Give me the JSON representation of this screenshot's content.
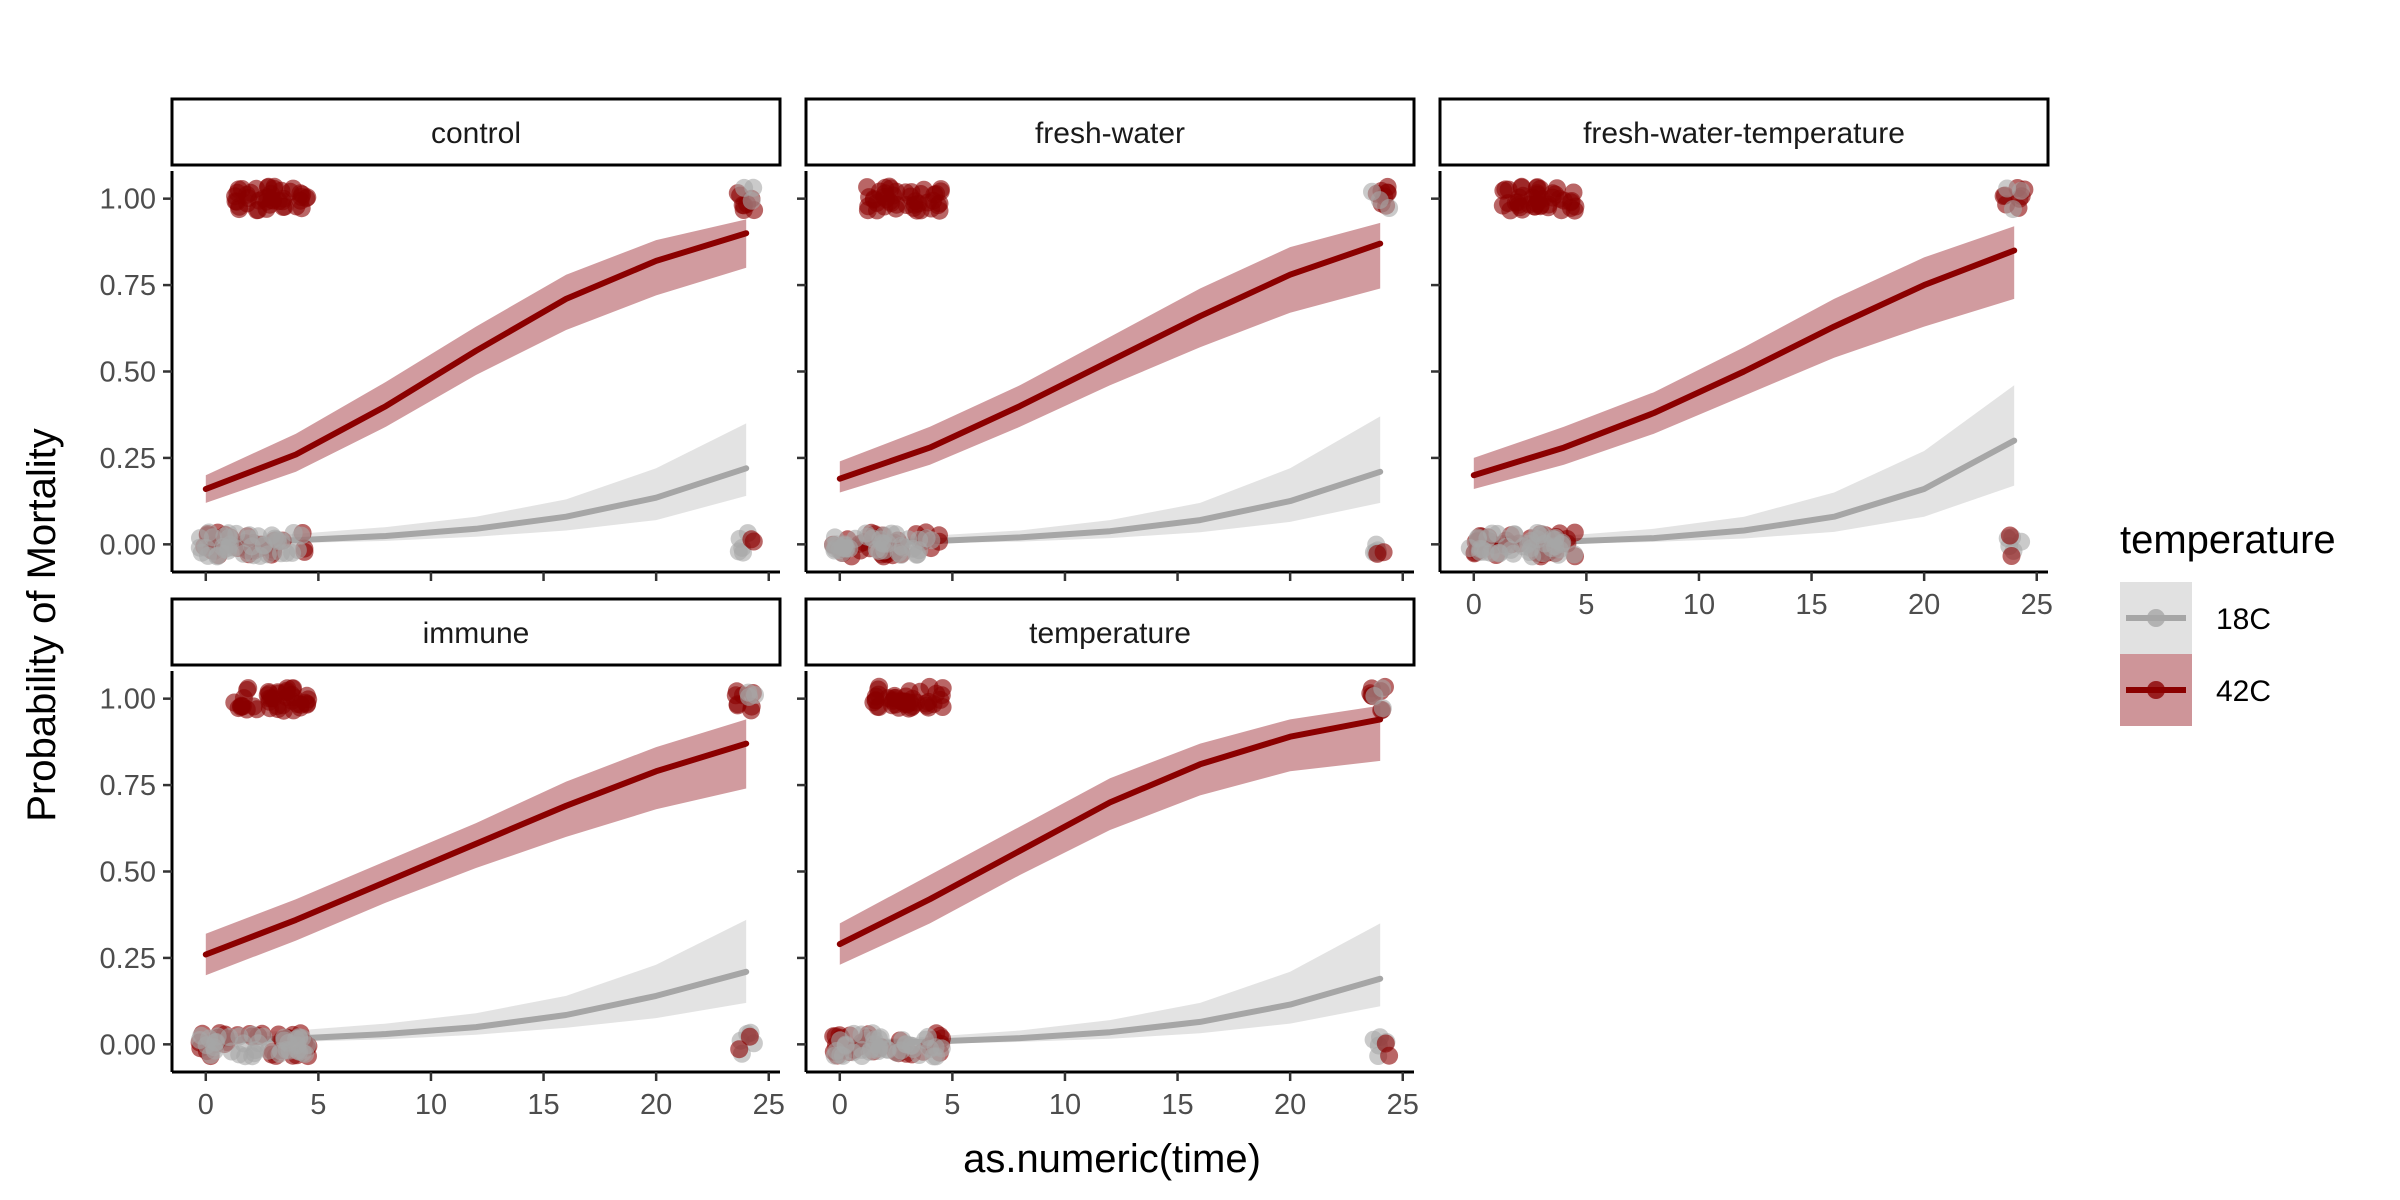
{
  "chart_data": {
    "type": "line",
    "facet_by": "treatment",
    "xlabel": "as.numeric(time)",
    "ylabel": "Probability of Mortality",
    "xlim": [
      -1.5,
      25.5
    ],
    "ylim": [
      -0.08,
      1.08
    ],
    "x_ticks": [
      0,
      5,
      10,
      15,
      20,
      25
    ],
    "y_ticks": [
      0.0,
      0.25,
      0.5,
      0.75,
      1.0
    ],
    "y_tick_labels": [
      "0.00",
      "0.25",
      "0.50",
      "0.75",
      "1.00"
    ],
    "grid": false,
    "legend": {
      "title": "temperature",
      "position": "right",
      "entries": [
        {
          "label": "18C",
          "line_color": "#a6a6a6",
          "band_color": "#d9d9d9"
        },
        {
          "label": "42C",
          "line_color": "#8b0000",
          "band_color": "#c98a8e"
        }
      ]
    },
    "panels": [
      {
        "title": "control",
        "series": [
          {
            "name": "18C",
            "x": [
              0,
              4,
              8,
              12,
              16,
              20,
              24
            ],
            "y": [
              0.005,
              0.012,
              0.024,
              0.045,
              0.08,
              0.135,
              0.22
            ],
            "lower": [
              0.0,
              0.004,
              0.01,
              0.022,
              0.04,
              0.07,
              0.14
            ],
            "upper": [
              0.02,
              0.03,
              0.05,
              0.08,
              0.13,
              0.22,
              0.35
            ]
          },
          {
            "name": "42C",
            "x": [
              0,
              4,
              8,
              12,
              16,
              20,
              24
            ],
            "y": [
              0.16,
              0.26,
              0.4,
              0.56,
              0.71,
              0.82,
              0.9
            ],
            "lower": [
              0.12,
              0.21,
              0.34,
              0.49,
              0.62,
              0.72,
              0.8
            ],
            "upper": [
              0.2,
              0.32,
              0.47,
              0.63,
              0.78,
              0.88,
              0.94
            ]
          }
        ]
      },
      {
        "title": "fresh-water",
        "series": [
          {
            "name": "18C",
            "x": [
              0,
              4,
              8,
              12,
              16,
              20,
              24
            ],
            "y": [
              0.004,
              0.009,
              0.02,
              0.038,
              0.07,
              0.125,
              0.21
            ],
            "lower": [
              0.0,
              0.003,
              0.008,
              0.018,
              0.035,
              0.065,
              0.12
            ],
            "upper": [
              0.015,
              0.025,
              0.04,
              0.07,
              0.12,
              0.22,
              0.37
            ]
          },
          {
            "name": "42C",
            "x": [
              0,
              4,
              8,
              12,
              16,
              20,
              24
            ],
            "y": [
              0.19,
              0.28,
              0.4,
              0.53,
              0.66,
              0.78,
              0.87
            ],
            "lower": [
              0.15,
              0.23,
              0.34,
              0.46,
              0.57,
              0.67,
              0.74
            ],
            "upper": [
              0.24,
              0.34,
              0.46,
              0.6,
              0.74,
              0.86,
              0.93
            ]
          }
        ]
      },
      {
        "title": "fresh-water-temperature",
        "series": [
          {
            "name": "18C",
            "x": [
              0,
              4,
              8,
              12,
              16,
              20,
              24
            ],
            "y": [
              0.003,
              0.008,
              0.018,
              0.04,
              0.08,
              0.16,
              0.3
            ],
            "lower": [
              0.0,
              0.002,
              0.007,
              0.017,
              0.036,
              0.08,
              0.17
            ],
            "upper": [
              0.01,
              0.025,
              0.045,
              0.08,
              0.15,
              0.27,
              0.46
            ]
          },
          {
            "name": "42C",
            "x": [
              0,
              4,
              8,
              12,
              16,
              20,
              24
            ],
            "y": [
              0.2,
              0.28,
              0.38,
              0.5,
              0.63,
              0.75,
              0.85
            ],
            "lower": [
              0.16,
              0.23,
              0.32,
              0.43,
              0.54,
              0.63,
              0.71
            ],
            "upper": [
              0.25,
              0.34,
              0.44,
              0.57,
              0.71,
              0.83,
              0.92
            ]
          }
        ]
      },
      {
        "title": "immune",
        "series": [
          {
            "name": "18C",
            "x": [
              0,
              4,
              8,
              12,
              16,
              20,
              24
            ],
            "y": [
              0.01,
              0.017,
              0.03,
              0.05,
              0.085,
              0.14,
              0.21
            ],
            "lower": [
              0.002,
              0.007,
              0.015,
              0.028,
              0.048,
              0.076,
              0.12
            ],
            "upper": [
              0.03,
              0.04,
              0.06,
              0.09,
              0.14,
              0.23,
              0.36
            ]
          },
          {
            "name": "42C",
            "x": [
              0,
              4,
              8,
              12,
              16,
              20,
              24
            ],
            "y": [
              0.26,
              0.36,
              0.47,
              0.58,
              0.69,
              0.79,
              0.87
            ],
            "lower": [
              0.2,
              0.3,
              0.41,
              0.51,
              0.6,
              0.68,
              0.74
            ],
            "upper": [
              0.32,
              0.42,
              0.53,
              0.64,
              0.76,
              0.86,
              0.94
            ]
          }
        ]
      },
      {
        "title": "temperature",
        "series": [
          {
            "name": "18C",
            "x": [
              0,
              4,
              8,
              12,
              16,
              20,
              24
            ],
            "y": [
              0.003,
              0.008,
              0.018,
              0.035,
              0.065,
              0.115,
              0.19
            ],
            "lower": [
              0.0,
              0.002,
              0.007,
              0.016,
              0.032,
              0.06,
              0.11
            ],
            "upper": [
              0.012,
              0.022,
              0.04,
              0.07,
              0.12,
              0.21,
              0.35
            ]
          },
          {
            "name": "42C",
            "x": [
              0,
              4,
              8,
              12,
              16,
              20,
              24
            ],
            "y": [
              0.29,
              0.42,
              0.56,
              0.7,
              0.81,
              0.89,
              0.94
            ],
            "lower": [
              0.23,
              0.35,
              0.49,
              0.62,
              0.72,
              0.79,
              0.82
            ],
            "upper": [
              0.35,
              0.49,
              0.63,
              0.77,
              0.87,
              0.94,
              0.98
            ]
          }
        ]
      }
    ]
  }
}
